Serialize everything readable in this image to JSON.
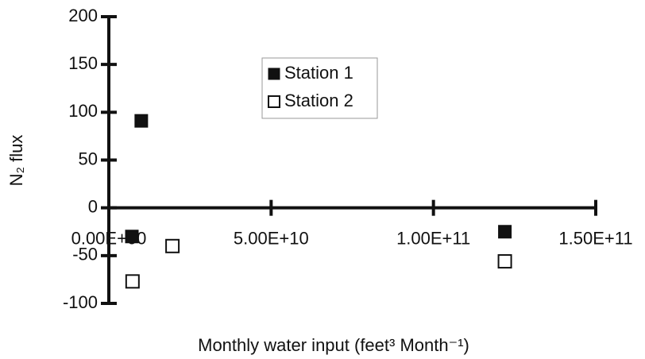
{
  "chart_data": {
    "type": "scatter",
    "xlabel": "Monthly water input (feet³ Month⁻¹)",
    "ylabel": "N₂ flux",
    "xlim": [
      0,
      150000000000
    ],
    "ylim": [
      -100,
      200
    ],
    "xticks": [
      {
        "value": 0,
        "label": "0.00E+00"
      },
      {
        "value": 50000000000,
        "label": "5.00E+10"
      },
      {
        "value": 100000000000,
        "label": "1.00E+11"
      },
      {
        "value": 150000000000,
        "label": "1.50E+11"
      }
    ],
    "yticks": [
      -100,
      -50,
      0,
      50,
      100,
      150,
      200
    ],
    "legend": "upper center",
    "series": [
      {
        "name": "Station 1",
        "color": "#111111",
        "marker": "filled-square",
        "x": [
          10000000000,
          7100000000,
          122000000000
        ],
        "values": [
          91,
          -30,
          -25
        ]
      },
      {
        "name": "Station 2",
        "color": "#111111",
        "marker": "open-square",
        "x": [
          7300000000,
          19600000000,
          122000000000
        ],
        "values": [
          -77,
          -40,
          -56
        ]
      }
    ]
  }
}
